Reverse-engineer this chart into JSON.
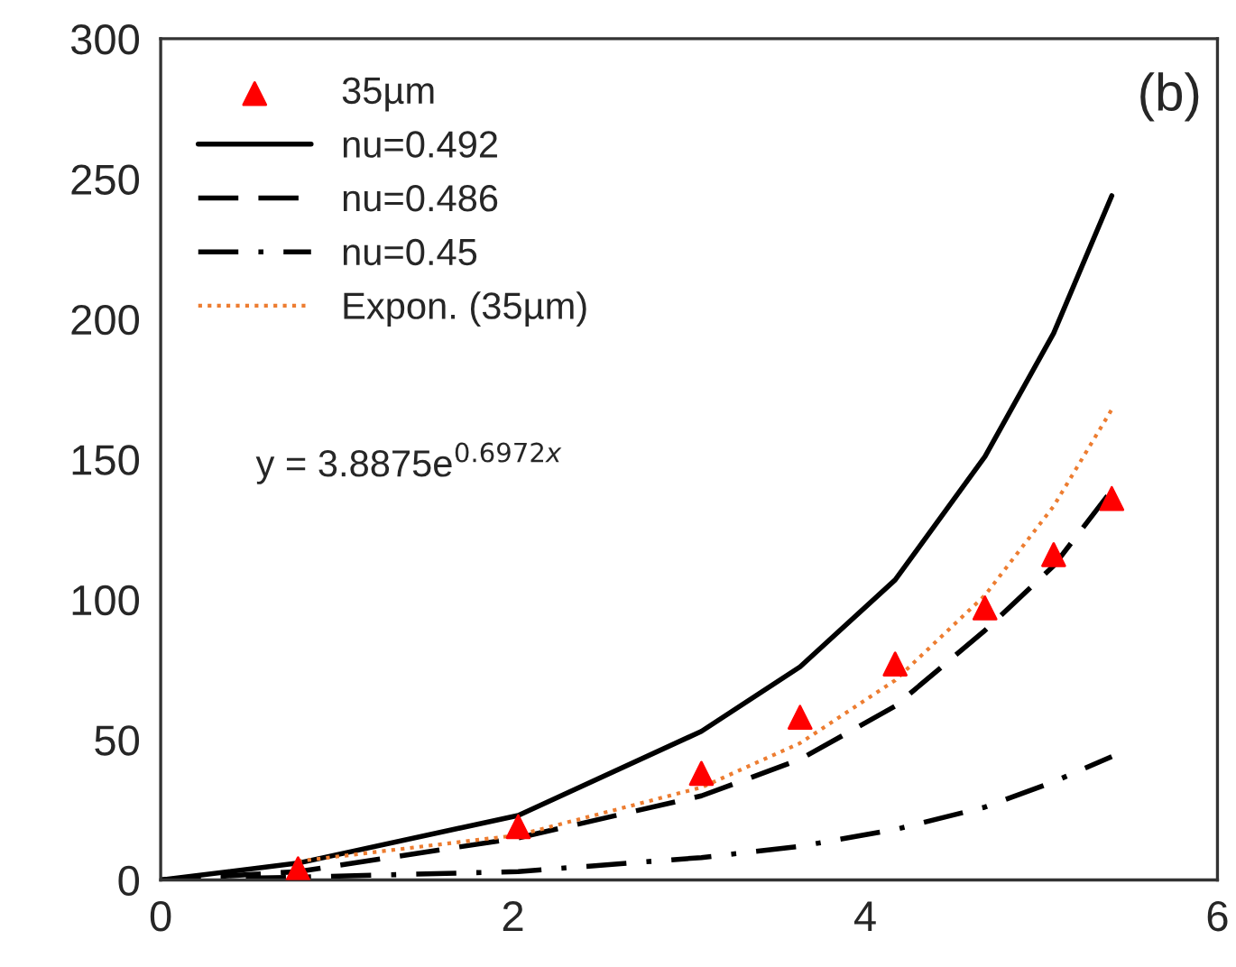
{
  "chart_data": {
    "type": "line",
    "xlim": [
      0,
      6
    ],
    "xticks": [
      0,
      2,
      4,
      6
    ],
    "ylim": [
      0,
      300
    ],
    "yticks": [
      0,
      50,
      100,
      150,
      200,
      250,
      300
    ],
    "grid": false,
    "legend": "top left",
    "annotations": [
      "(b)",
      "y = 3.8875e$^{0.6972x}$"
    ],
    "series": [
      {
        "name": "35µm",
        "type": "scatter",
        "marker": "triangle",
        "color": "#ff0000",
        "x": [
          0.78,
          2.03,
          3.07,
          3.63,
          4.17,
          4.68,
          5.07,
          5.4
        ],
        "values": [
          4,
          19,
          38,
          58,
          77,
          97,
          116,
          136
        ]
      },
      {
        "name": "nu=0.492",
        "color": "#000000",
        "line_style": "solid",
        "x": [
          0,
          0.78,
          2.03,
          3.07,
          3.63,
          4.17,
          4.68,
          5.07,
          5.4
        ],
        "values": [
          0,
          6,
          23,
          53,
          76,
          107,
          151,
          195,
          244
        ]
      },
      {
        "name": "nu=0.486",
        "color": "#000000",
        "line_style": "dashed",
        "x": [
          0,
          0.78,
          2.03,
          3.07,
          3.63,
          4.17,
          4.68,
          5.07,
          5.4
        ],
        "values": [
          0,
          3,
          15,
          30,
          43,
          62,
          89,
          112,
          139
        ]
      },
      {
        "name": "nu=0.45",
        "color": "#000000",
        "line_style": "dashdot",
        "x": [
          0,
          0.78,
          2.03,
          3.07,
          3.63,
          4.17,
          4.68,
          5.07,
          5.4
        ],
        "values": [
          0,
          1,
          3,
          8,
          12,
          18,
          26,
          35,
          44
        ]
      },
      {
        "name": "Expon. (35µm)",
        "color": "#ed7d31",
        "line_style": "dotted",
        "x": [
          0.78,
          2.03,
          3.07,
          3.63,
          4.17,
          4.68,
          5.07,
          5.4
        ],
        "values": [
          6.7,
          16.0,
          33.0,
          48.8,
          71.2,
          101.5,
          133.3,
          167.8
        ]
      }
    ]
  }
}
